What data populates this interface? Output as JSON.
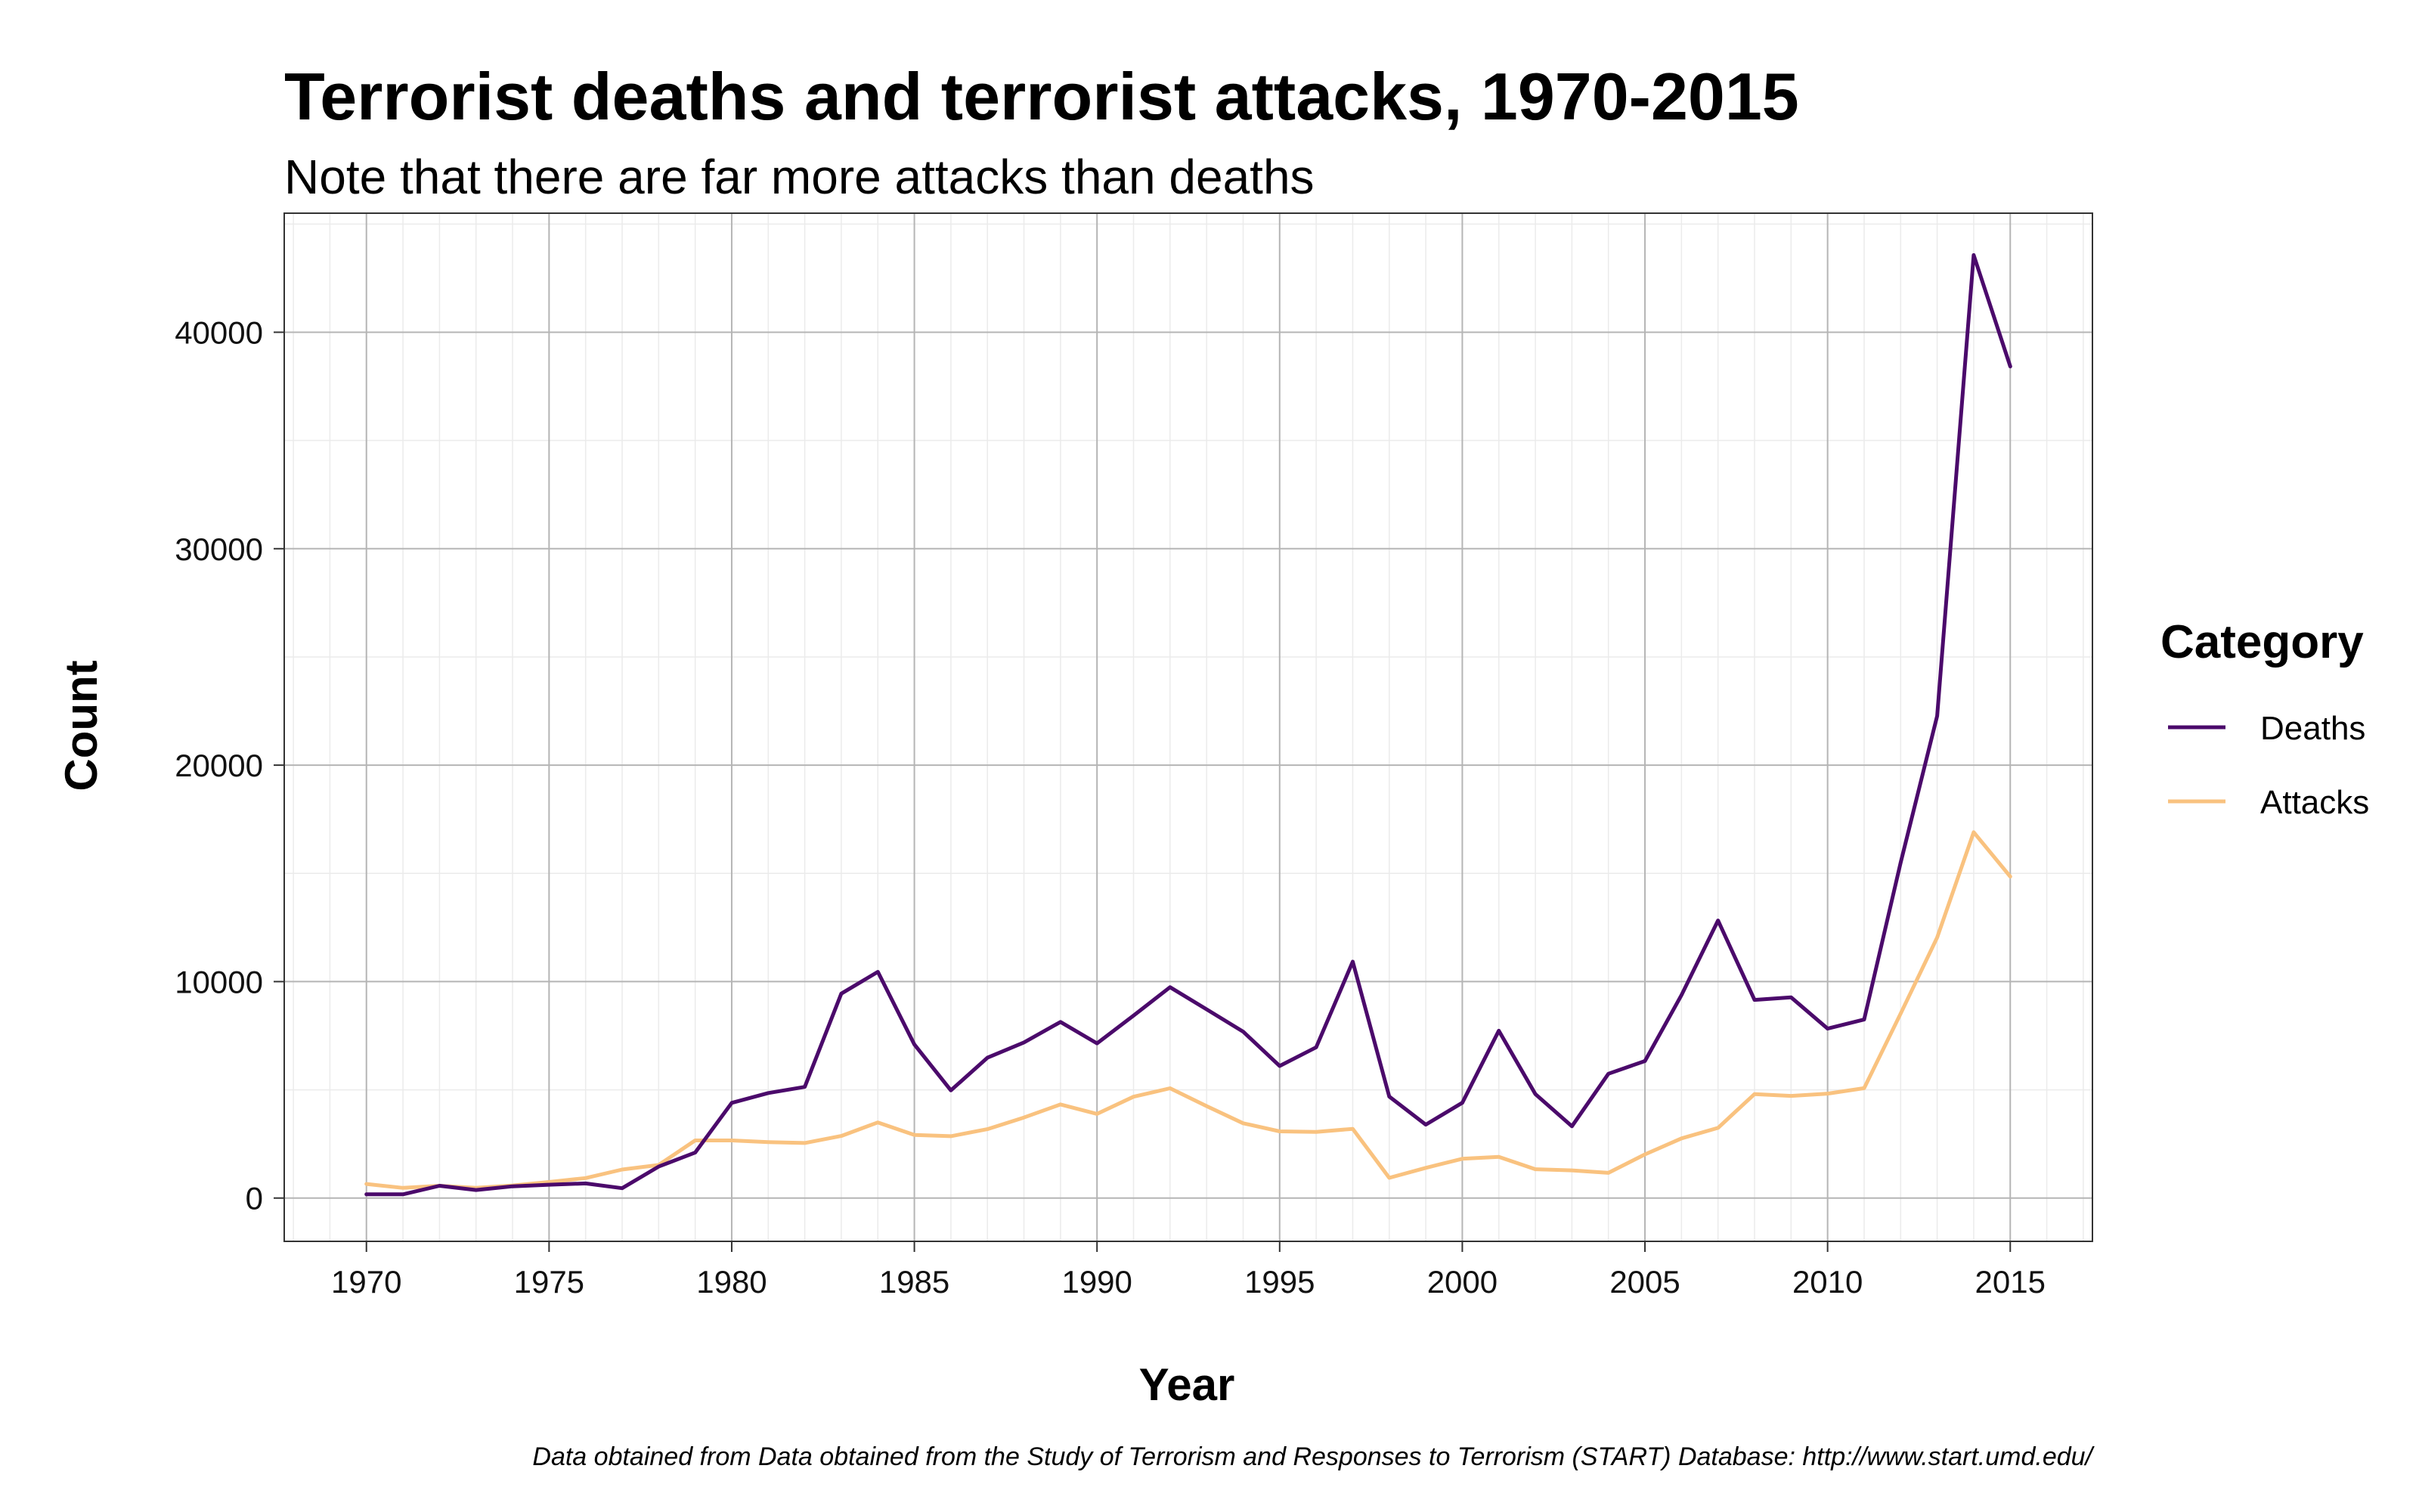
{
  "chart_data": {
    "type": "line",
    "title": "Terrorist deaths and terrorist attacks, 1970-2015",
    "subtitle": "Note that there are far more attacks than deaths",
    "xlabel": "Year",
    "ylabel": "Count",
    "caption": "Data obtained from Data obtained from the Study of Terrorism and Responses to Terrorism (START) Database: http://www.start.umd.edu/",
    "xlim": [
      1967.8,
      1017.2
    ],
    "ylim": [
      -2000,
      45500
    ],
    "x_ticks": [
      1970,
      1975,
      1980,
      1985,
      1990,
      1995,
      2000,
      2005,
      2010,
      2015
    ],
    "y_ticks": [
      0,
      10000,
      20000,
      30000,
      40000
    ],
    "grid": true,
    "legend": {
      "title": "Category",
      "position": "right"
    },
    "x": [
      1970,
      1971,
      1972,
      1973,
      1974,
      1975,
      1976,
      1977,
      1978,
      1979,
      1980,
      1981,
      1982,
      1983,
      1984,
      1985,
      1986,
      1987,
      1988,
      1989,
      1990,
      1991,
      1992,
      1993,
      1994,
      1995,
      1996,
      1997,
      1998,
      1999,
      2000,
      2001,
      2002,
      2003,
      2004,
      2005,
      2006,
      2007,
      2008,
      2009,
      2010,
      2011,
      2012,
      2013,
      2014,
      2015
    ],
    "series": [
      {
        "name": "Deaths",
        "color": "#4b0a6b",
        "values": [
          174,
          173,
          566,
          370,
          542,
          617,
          677,
          456,
          1455,
          2100,
          4400,
          4851,
          5136,
          9444,
          10450,
          7094,
          4976,
          6482,
          7189,
          8136,
          7148,
          8430,
          9742,
          8720,
          7690,
          6104,
          6966,
          10924,
          4688,
          3393,
          4403,
          7729,
          4805,
          3317,
          5743,
          6331,
          9380,
          12824,
          9157,
          9273,
          7827,
          8246,
          15497,
          22273,
          43566,
          38422
        ]
      },
      {
        "name": "Attacks",
        "color": "#f9c27f",
        "values": [
          651,
          471,
          568,
          473,
          581,
          740,
          923,
          1319,
          1526,
          2662,
          2662,
          2586,
          2544,
          2870,
          3495,
          2915,
          2860,
          3183,
          3721,
          4324,
          3887,
          4683,
          5071,
          4250,
          3456,
          3081,
          3058,
          3197,
          934,
          1395,
          1814,
          1906,
          1333,
          1278,
          1166,
          2017,
          2758,
          3242,
          4805,
          4721,
          4826,
          5076,
          8522,
          12036,
          16903,
          14852
        ]
      }
    ]
  }
}
